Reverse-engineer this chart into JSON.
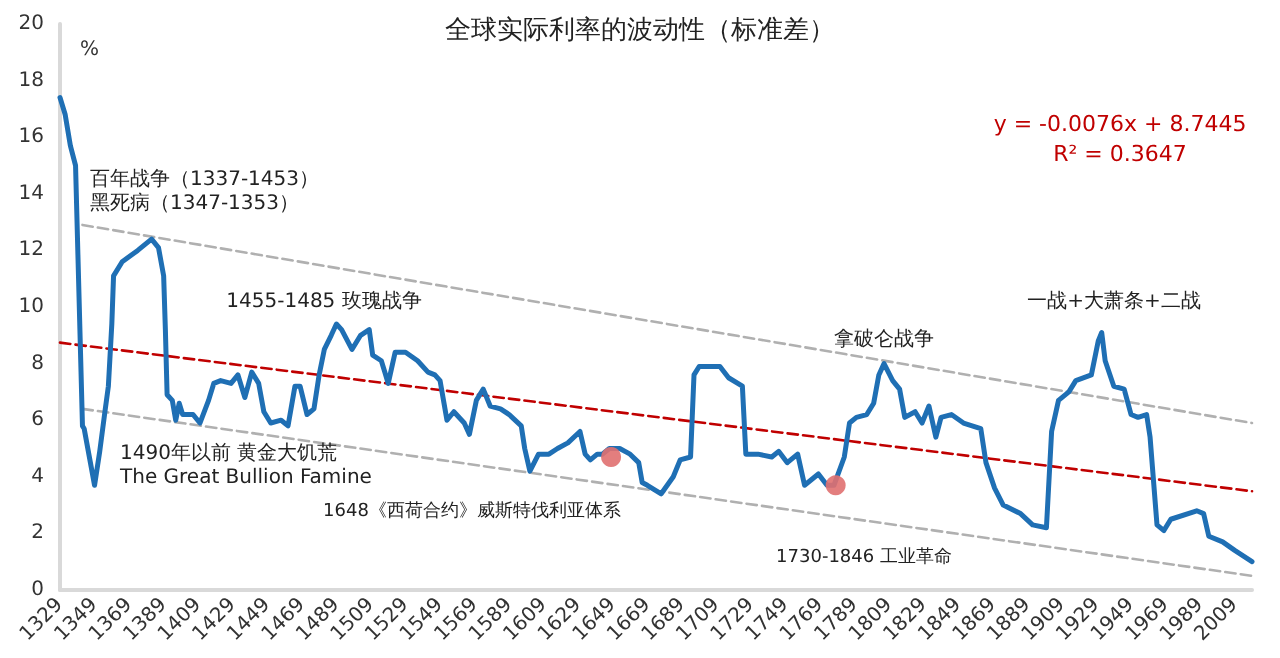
{
  "chart_data": {
    "type": "line",
    "title": "全球实际利率的波动性（标准差）",
    "ylabel": "%",
    "xlim": [
      1329,
      2019
    ],
    "xticks": [
      1329,
      1349,
      1369,
      1389,
      1409,
      1429,
      1449,
      1469,
      1489,
      1509,
      1529,
      1549,
      1569,
      1589,
      1609,
      1629,
      1649,
      1669,
      1689,
      1709,
      1729,
      1749,
      1769,
      1789,
      1809,
      1829,
      1849,
      1869,
      1889,
      1909,
      1929,
      1949,
      1969,
      1989,
      2009
    ],
    "ylim": [
      0,
      20
    ],
    "yticks": [
      0,
      2,
      4,
      6,
      8,
      10,
      12,
      14,
      16,
      18,
      20
    ],
    "marker": "none",
    "line_style": "solid",
    "series": [
      {
        "color": "#1f6fb4",
        "x": [
          1329,
          1332,
          1335,
          1338,
          1342,
          1343,
          1346,
          1349,
          1352,
          1355,
          1357,
          1359,
          1360,
          1365,
          1374,
          1382,
          1386,
          1389,
          1390,
          1391,
          1394,
          1396,
          1398,
          1400,
          1406,
          1410,
          1415,
          1418,
          1422,
          1428,
          1432,
          1436,
          1440,
          1444,
          1447,
          1451,
          1457,
          1461,
          1465,
          1468,
          1472,
          1476,
          1479,
          1482,
          1486,
          1489,
          1492,
          1498,
          1503,
          1508,
          1510,
          1515,
          1517,
          1519,
          1523,
          1529,
          1536,
          1542,
          1546,
          1549,
          1553,
          1557,
          1563,
          1566,
          1570,
          1574,
          1578,
          1584,
          1589,
          1596,
          1598,
          1601,
          1606,
          1612,
          1617,
          1623,
          1630,
          1633,
          1636,
          1640,
          1643,
          1647,
          1653,
          1659,
          1664,
          1666,
          1669,
          1677,
          1684,
          1688,
          1694,
          1696,
          1699,
          1711,
          1716,
          1724,
          1726,
          1733,
          1741,
          1745,
          1750,
          1756,
          1760,
          1768,
          1773,
          1777,
          1783,
          1786,
          1790,
          1796,
          1800,
          1803,
          1806,
          1811,
          1815,
          1818,
          1824,
          1828,
          1832,
          1836,
          1839,
          1845,
          1852,
          1862,
          1865,
          1870,
          1875,
          1885,
          1892,
          1900,
          1903,
          1907,
          1913,
          1917,
          1926,
          1930,
          1932,
          1934,
          1939,
          1945,
          1949,
          1953,
          1958,
          1960,
          1964,
          1968,
          1972,
          1987,
          1991,
          1994,
          2002,
          2009,
          2019
        ],
        "values": [
          17.4,
          16.8,
          15.7,
          15.0,
          5.8,
          5.7,
          4.7,
          3.7,
          4.9,
          6.3,
          7.2,
          9.4,
          11.1,
          11.6,
          12.0,
          12.4,
          12.1,
          11.1,
          9.2,
          6.9,
          6.7,
          6.0,
          6.6,
          6.2,
          6.2,
          5.9,
          6.7,
          7.3,
          7.4,
          7.3,
          7.6,
          6.8,
          7.7,
          7.3,
          6.3,
          5.9,
          6.0,
          5.8,
          7.2,
          7.2,
          6.2,
          6.4,
          7.6,
          8.5,
          9.0,
          9.4,
          9.2,
          8.5,
          9.0,
          9.2,
          8.3,
          8.1,
          7.7,
          7.3,
          8.4,
          8.4,
          8.1,
          7.7,
          7.6,
          7.4,
          6.0,
          6.3,
          5.9,
          5.5,
          6.7,
          7.1,
          6.5,
          6.4,
          6.2,
          5.8,
          5.0,
          4.2,
          4.8,
          4.8,
          5.0,
          5.2,
          5.6,
          4.8,
          4.6,
          4.8,
          4.8,
          5.0,
          5.0,
          4.8,
          4.5,
          3.8,
          3.7,
          3.4,
          4.0,
          4.6,
          4.7,
          7.6,
          7.9,
          7.9,
          7.5,
          7.2,
          4.8,
          4.8,
          4.7,
          4.9,
          4.5,
          4.8,
          3.7,
          4.1,
          3.7,
          3.7,
          4.7,
          5.9,
          6.1,
          6.2,
          6.6,
          7.6,
          8.0,
          7.4,
          7.1,
          6.1,
          6.3,
          5.9,
          6.5,
          5.4,
          6.1,
          6.2,
          5.9,
          5.7,
          4.5,
          3.6,
          3.0,
          2.7,
          2.3,
          2.2,
          5.6,
          6.7,
          7.0,
          7.4,
          7.6,
          8.8,
          9.1,
          8.1,
          7.2,
          7.1,
          6.2,
          6.1,
          6.2,
          5.4,
          2.3,
          2.1,
          2.5,
          2.8,
          2.7,
          1.9,
          1.7,
          1.4,
          1.0
        ]
      },
      {
        "color": "#c00000",
        "line_style": "dashed",
        "x": [
          1329,
          2019
        ],
        "values": [
          8.74,
          3.49
        ]
      },
      {
        "color": "#b0b0b0",
        "line_style": "dashed",
        "x": [
          1342,
          2019
        ],
        "values": [
          12.9,
          5.9
        ]
      },
      {
        "color": "#b0b0b0",
        "line_style": "dashed",
        "x": [
          1342,
          2019
        ],
        "values": [
          6.4,
          0.5
        ]
      },
      {
        "type": "scatter",
        "marker": "circle",
        "color": "#e07070",
        "x": [
          1648,
          1778
        ],
        "values": [
          4.7,
          3.7
        ]
      }
    ],
    "annotations": [
      "y = -0.0076x + 8.7445",
      "R² = 0.3647",
      "百年战争（1337-1453）",
      "黑死病（1347-1353）",
      "1455-1485 玫瑰战争",
      "1490年以前 黄金大饥荒",
      "The Great Bullion Famine",
      "1648《西荷合约》威斯特伐利亚体系",
      "1730-1846 工业革命",
      "拿破仑战争",
      "一战+大萧条+二战"
    ]
  }
}
